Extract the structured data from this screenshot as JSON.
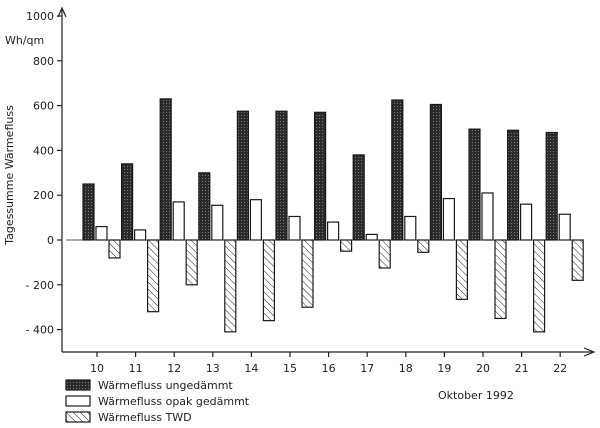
{
  "chart_data": {
    "type": "bar",
    "ylabel": "Tagessumme Wärmefluss",
    "yunit": "Wh/qm",
    "xlabel": "Oktober 1992",
    "ylim": [
      -500,
      1000
    ],
    "yticks": [
      1000,
      800,
      600,
      400,
      200,
      0,
      -200,
      -400
    ],
    "ytick_labels": [
      "1000",
      "800",
      "600",
      "400",
      "200",
      "0",
      "- 200",
      "- 400"
    ],
    "grid": false,
    "legend_position": "bottom-left",
    "categories": [
      "10",
      "11",
      "12",
      "13",
      "14",
      "15",
      "16",
      "17",
      "18",
      "19",
      "20",
      "21",
      "22"
    ],
    "series": [
      {
        "name": "Wärmefluss ungedämmt",
        "pattern": "dark-dotted",
        "values": [
          250,
          340,
          630,
          300,
          575,
          575,
          570,
          380,
          625,
          605,
          495,
          490,
          480
        ]
      },
      {
        "name": "Wärmefluss opak gedämmt",
        "pattern": "white",
        "values": [
          60,
          45,
          170,
          155,
          180,
          105,
          80,
          25,
          105,
          185,
          210,
          160,
          115
        ]
      },
      {
        "name": "Wärmefluss TWD",
        "pattern": "hatched",
        "values": [
          -80,
          -320,
          -200,
          -410,
          -360,
          -300,
          -50,
          -125,
          -55,
          -265,
          -350,
          -410,
          -180
        ]
      }
    ]
  }
}
